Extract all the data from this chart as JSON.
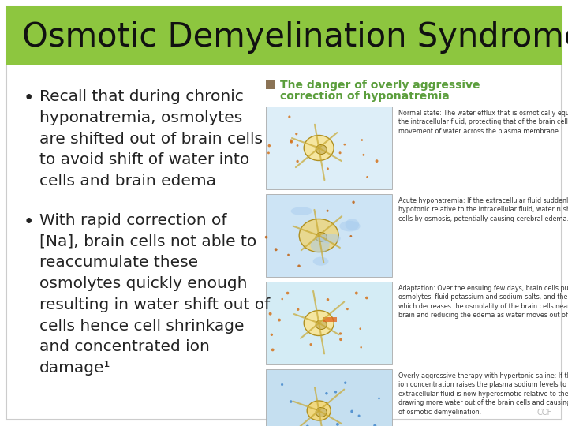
{
  "title": "Osmotic Demyelination Syndrome",
  "title_bg_color": "#8DC63F",
  "title_text_color": "#111111",
  "slide_bg_color": "#FFFFFF",
  "border_color": "#CCCCCC",
  "bullet1_lines": [
    "Recall that during chronic",
    "hyponatremia, osmolytes",
    "are shifted out of brain cells",
    "to avoid shift of water into",
    "cells and brain edema"
  ],
  "bullet2_lines": [
    "With rapid correction of",
    "[Na], brain cells not able to",
    "reaccumulate these",
    "osmolytes quickly enough",
    "resulting in water shift out of",
    "cells hence cell shrinkage",
    "and concentrated ion",
    "damage¹"
  ],
  "right_header_color": "#5B9E3C",
  "right_header_square_color": "#8B7355",
  "right_header_line1": "The danger of overly aggressive",
  "right_header_line2": "correction of hyponatremia",
  "bullet_color": "#222222",
  "body_font_size": 14.5,
  "title_font_size": 30,
  "footer_text": "CCF",
  "footer_color": "#BBBBBB",
  "panel_colors": [
    "#ddeef8",
    "#cde4f5",
    "#d4ecf5",
    "#c5dff0"
  ],
  "panel_border_color": "#aaaaaa",
  "right_text_color": "#333333",
  "right_texts": [
    "Normal state: The water efflux that is osmotically equilibrated with\nthe intracellular fluid, protecting that of the brain cells, with no net\nmovement of water across the plasma membrane.",
    "Acute hyponatremia: If the extracellular fluid suddenly becomes\nhypotonic relative to the intracellular fluid, water rushes into the\ncells by osmosis, potentially causing cerebral edema.",
    "Adaptation: Over the ensuing few days, brain cells pump out\nosmolytes, fluid potassium and sodium salts, and their organic osmolytes\nwhich decreases the osmolality of the brain cells near the plasma osmolality\nbrain and reducing the edema as water moves out of the cells.",
    "Overly aggressive therapy with hypertonic saline: If the sodium\nion concentration raises the plasma sodium levels to the point that the\nextracellular fluid is now hyperosmotic relative to the intracellular fluid,\ndrawing more water out of the brain cells and causing the syndrome\nof osmotic demyelination."
  ]
}
